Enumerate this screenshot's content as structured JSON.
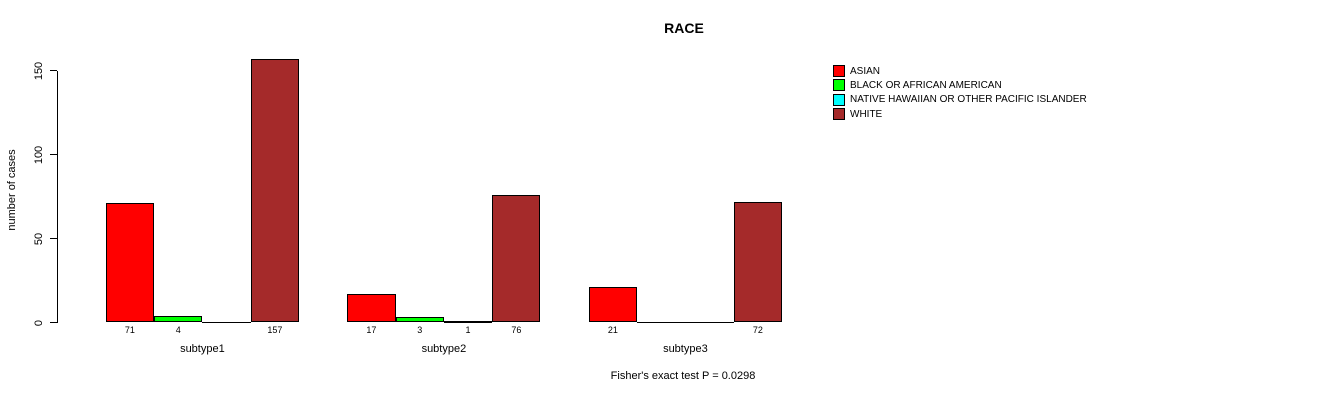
{
  "chart_data": {
    "type": "bar",
    "title": "RACE",
    "xlabel": "",
    "ylabel": "number of cases",
    "ylim": [
      0,
      150
    ],
    "yticks": [
      0,
      50,
      100,
      150
    ],
    "grid": false,
    "legend_position": "top-right",
    "hide_zero_value_labels": true,
    "categories": [
      "subtype1",
      "subtype2",
      "subtype3"
    ],
    "series": [
      {
        "name": "ASIAN",
        "color": "#FF0000",
        "values": [
          71,
          17,
          21
        ]
      },
      {
        "name": "BLACK OR AFRICAN AMERICAN",
        "color": "#00FF00",
        "values": [
          4,
          3,
          0
        ]
      },
      {
        "name": "NATIVE HAWAIIAN OR OTHER PACIFIC ISLANDER",
        "color": "#00FFFF",
        "values": [
          0,
          1,
          0
        ]
      },
      {
        "name": "WHITE",
        "color": "#A52A2A",
        "values": [
          157,
          76,
          72
        ]
      }
    ],
    "annotation": "Fisher's exact test P = 0.0298"
  }
}
